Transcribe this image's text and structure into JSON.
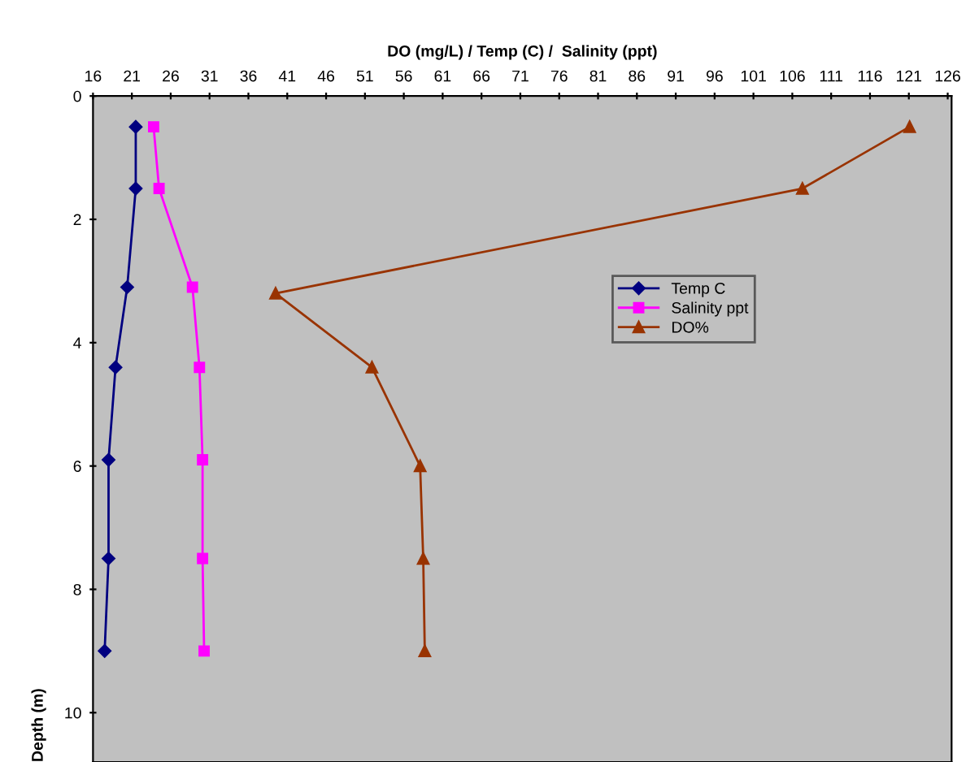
{
  "chart_data": {
    "type": "line",
    "xlabel": "DO (mg/L) / Temp (C) /  Salinity (ppt)",
    "ylabel": "Depth (m)",
    "xlim": [
      16,
      126.5
    ],
    "xticks": [
      16,
      21,
      26,
      31,
      36,
      41,
      46,
      51,
      56,
      61,
      66,
      71,
      76,
      81,
      86,
      91,
      96,
      101,
      106,
      111,
      116,
      121,
      126
    ],
    "ylim": [
      10.8,
      0
    ],
    "yticks": [
      0,
      2,
      4,
      6,
      8,
      10
    ],
    "grid": false,
    "legend": "right",
    "series": [
      {
        "name": "Temp C",
        "color": "#000080",
        "marker": "diamond",
        "x": [
          21.5,
          21.5,
          20.4,
          18.9,
          18.0,
          18.0,
          17.5
        ],
        "values": [
          0.5,
          1.5,
          3.1,
          4.4,
          5.9,
          7.5,
          9.0
        ]
      },
      {
        "name": "Salinity ppt",
        "color": "#ff00ff",
        "marker": "square",
        "x": [
          23.8,
          24.5,
          28.8,
          29.7,
          30.1,
          30.1,
          30.3
        ],
        "values": [
          0.5,
          1.5,
          3.1,
          4.4,
          5.9,
          7.5,
          9.0
        ]
      },
      {
        "name": "DO%",
        "color": "#993300",
        "marker": "triangle",
        "x": [
          121.1,
          107.3,
          39.5,
          51.9,
          58.1,
          58.5,
          58.7
        ],
        "values": [
          0.5,
          1.5,
          3.2,
          4.4,
          6.0,
          7.5,
          9.0
        ]
      }
    ]
  }
}
